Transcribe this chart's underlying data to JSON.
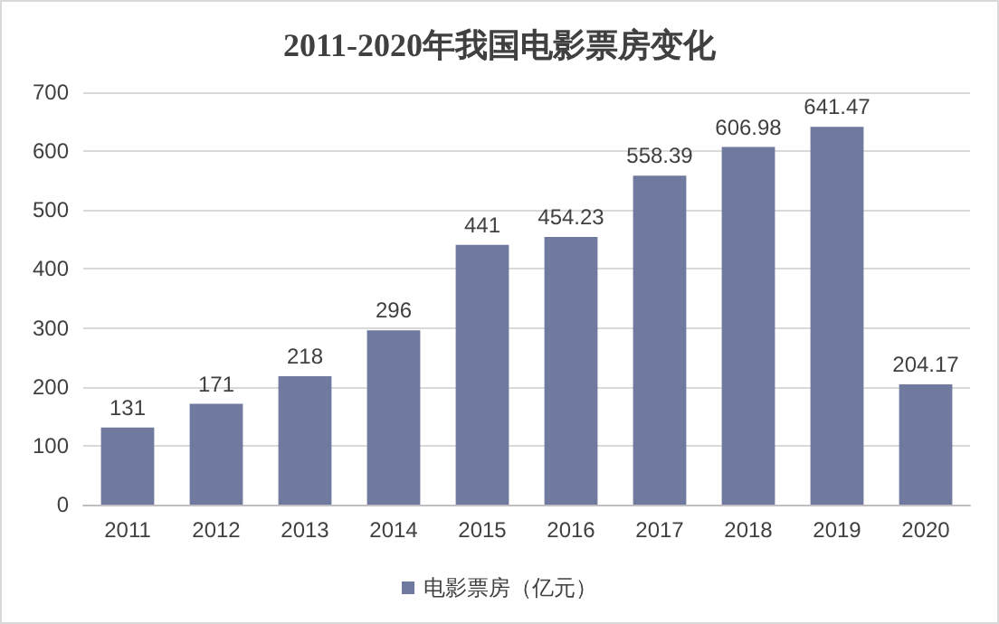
{
  "chart_data": {
    "type": "bar",
    "title": "2011-2020年我国电影票房变化",
    "categories": [
      "2011",
      "2012",
      "2013",
      "2014",
      "2015",
      "2016",
      "2017",
      "2018",
      "2019",
      "2020"
    ],
    "series": [
      {
        "name": "电影票房（亿元）",
        "color": "#6f7a9e",
        "values": [
          131,
          171,
          218,
          296,
          441,
          454.23,
          558.39,
          606.98,
          641.47,
          204.17
        ]
      }
    ],
    "ylim": [
      0,
      700
    ],
    "yticks": [
      0,
      100,
      200,
      300,
      400,
      500,
      600,
      700
    ],
    "grid": "y",
    "legend": "bottom",
    "data_labels": true
  }
}
